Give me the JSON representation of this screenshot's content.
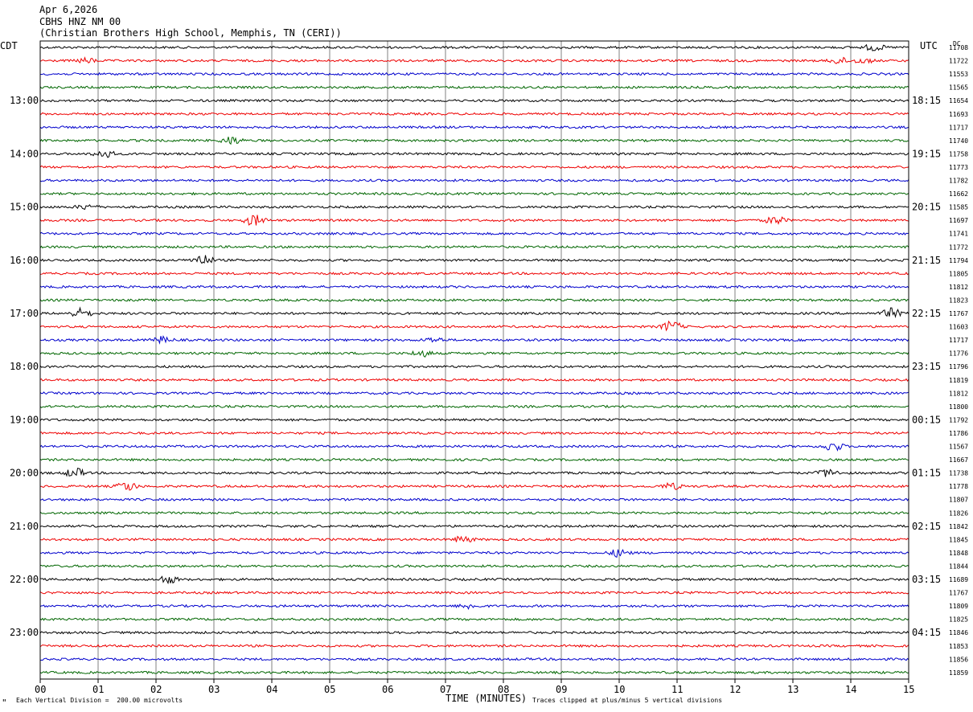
{
  "header": {
    "date": "Apr 6,2026",
    "station": "CBHS HNZ NM 00",
    "location": "(Christian Brothers High School, Memphis, TN (CERI))"
  },
  "labels": {
    "left_timezone": "CDT",
    "right_timezone": "UTC",
    "dc_header": "DC",
    "x_axis_title": "TIME (MINUTES)",
    "scale_note": "Each Vertical Division =  200.00 microvolts",
    "clip_note": "Traces clipped at plus/minus 5 vertical divisions",
    "corner_mark": "\""
  },
  "colors": {
    "trace_cycle": [
      "#000000",
      "#ee0000",
      "#0000cc",
      "#006600"
    ],
    "grid": "#808080"
  },
  "chart_data": {
    "type": "line",
    "description_free": true,
    "x_ticks": [
      "00",
      "01",
      "02",
      "03",
      "04",
      "05",
      "06",
      "07",
      "08",
      "09",
      "10",
      "11",
      "12",
      "13",
      "14",
      "15"
    ],
    "xlim": [
      0,
      15
    ],
    "rows": 48,
    "left_hour_labels": [
      "13:00",
      "14:00",
      "15:00",
      "16:00",
      "17:00",
      "18:00",
      "19:00",
      "20:00",
      "21:00",
      "22:00",
      "23:00"
    ],
    "right_hour_labels": [
      "18:15",
      "19:15",
      "20:15",
      "21:15",
      "22:15",
      "23:15",
      "00:15",
      "01:15",
      "02:15",
      "03:15",
      "04:15"
    ],
    "dc_values": [
      "11708",
      "11722",
      "11553",
      "11565",
      "11654",
      "11693",
      "11717",
      "11740",
      "11758",
      "11773",
      "11782",
      "11662",
      "11585",
      "11697",
      "11741",
      "11772",
      "11794",
      "11805",
      "11812",
      "11823",
      "11767",
      "11603",
      "11717",
      "11776",
      "11796",
      "11819",
      "11812",
      "11800",
      "11792",
      "11786",
      "11567",
      "11667",
      "11738",
      "11778",
      "11807",
      "11826",
      "11842",
      "11845",
      "11848",
      "11844",
      "11689",
      "11767",
      "11809",
      "11825",
      "11846",
      "11853",
      "11856",
      "11859"
    ],
    "events": [
      {
        "row": 0,
        "minute": 14.4,
        "amp": 4
      },
      {
        "row": 1,
        "minute": 0.8,
        "amp": 3
      },
      {
        "row": 1,
        "minute": 13.8,
        "amp": 4
      },
      {
        "row": 1,
        "minute": 14.2,
        "amp": 3
      },
      {
        "row": 7,
        "minute": 3.3,
        "amp": 5
      },
      {
        "row": 8,
        "minute": 1.1,
        "amp": 5
      },
      {
        "row": 12,
        "minute": 0.8,
        "amp": 3
      },
      {
        "row": 13,
        "minute": 3.7,
        "amp": 7
      },
      {
        "row": 13,
        "minute": 12.7,
        "amp": 5
      },
      {
        "row": 16,
        "minute": 2.8,
        "amp": 7
      },
      {
        "row": 20,
        "minute": 0.7,
        "amp": 6
      },
      {
        "row": 20,
        "minute": 14.7,
        "amp": 6
      },
      {
        "row": 21,
        "minute": 10.9,
        "amp": 7
      },
      {
        "row": 22,
        "minute": 2.1,
        "amp": 4
      },
      {
        "row": 22,
        "minute": 6.8,
        "amp": 3
      },
      {
        "row": 23,
        "minute": 6.6,
        "amp": 4
      },
      {
        "row": 30,
        "minute": 13.7,
        "amp": 6
      },
      {
        "row": 32,
        "minute": 0.6,
        "amp": 6
      },
      {
        "row": 32,
        "minute": 13.6,
        "amp": 5
      },
      {
        "row": 33,
        "minute": 1.5,
        "amp": 6
      },
      {
        "row": 33,
        "minute": 10.9,
        "amp": 4
      },
      {
        "row": 37,
        "minute": 7.3,
        "amp": 4
      },
      {
        "row": 38,
        "minute": 10.0,
        "amp": 5
      },
      {
        "row": 40,
        "minute": 2.2,
        "amp": 5
      },
      {
        "row": 42,
        "minute": 7.4,
        "amp": 3
      }
    ]
  }
}
